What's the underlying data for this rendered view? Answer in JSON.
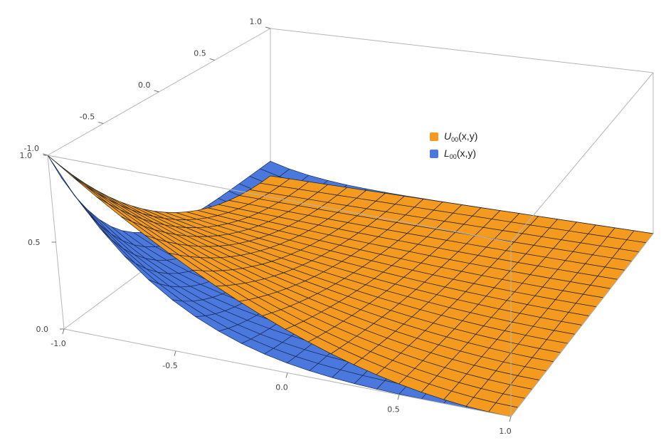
{
  "chart_data": {
    "type": "surface3d",
    "series": [
      {
        "key": "upper",
        "symbol": "U",
        "subscript": "00",
        "args": "(x,y)",
        "color": "#f39a1f",
        "edge": "#222222"
      },
      {
        "key": "lower",
        "symbol": "L",
        "subscript": "00",
        "args": "(x,y)",
        "color": "#4a78dd",
        "edge": "#1a2a55"
      }
    ],
    "x_range": [
      -1,
      1
    ],
    "y_range": [
      -1,
      1
    ],
    "z_range": [
      0,
      1
    ],
    "x_ticks": [
      "-1.0",
      "-0.5",
      "0.0",
      "0.5",
      "1.0"
    ],
    "y_ticks": [
      "-1.0",
      "-0.5",
      "0.0",
      "0.5",
      "1.0"
    ],
    "z_ticks": [
      "0.0",
      "0.5",
      "1.0"
    ],
    "grid": false,
    "legend_position": "upper-right inside box",
    "surface_samples_x": [
      -1.0,
      -0.5,
      0.0,
      0.5,
      1.0
    ],
    "upper_at_y_minus1": [
      1.0,
      0.56,
      0.25,
      0.06,
      0.0
    ],
    "lower_at_y_minus1": [
      1.0,
      0.25,
      0.06,
      0.01,
      0.0
    ]
  }
}
